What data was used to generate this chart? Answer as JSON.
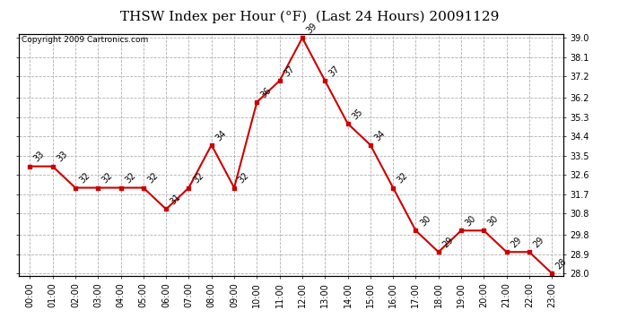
{
  "title": "THSW Index per Hour (°F)  (Last 24 Hours) 20091129",
  "copyright": "Copyright 2009 Cartronics.com",
  "hours": [
    "00:00",
    "01:00",
    "02:00",
    "03:00",
    "04:00",
    "05:00",
    "06:00",
    "07:00",
    "08:00",
    "09:00",
    "10:00",
    "11:00",
    "12:00",
    "13:00",
    "14:00",
    "15:00",
    "16:00",
    "17:00",
    "18:00",
    "19:00",
    "20:00",
    "21:00",
    "22:00",
    "23:00"
  ],
  "values": [
    33,
    33,
    32,
    32,
    32,
    32,
    31,
    32,
    34,
    32,
    36,
    37,
    39,
    37,
    35,
    34,
    32,
    30,
    29,
    30,
    30,
    29,
    29,
    28
  ],
  "ylim_min": 27.9,
  "ylim_max": 39.2,
  "yticks": [
    28.0,
    28.9,
    29.8,
    30.8,
    31.7,
    32.6,
    33.5,
    34.4,
    35.3,
    36.2,
    37.2,
    38.1,
    39.0
  ],
  "line_color": "#cc0000",
  "marker_color": "#cc0000",
  "bg_color": "#ffffff",
  "grid_color": "#b0b0b0",
  "title_fontsize": 11,
  "label_fontsize": 7,
  "tick_fontsize": 7,
  "copyright_fontsize": 6.5
}
